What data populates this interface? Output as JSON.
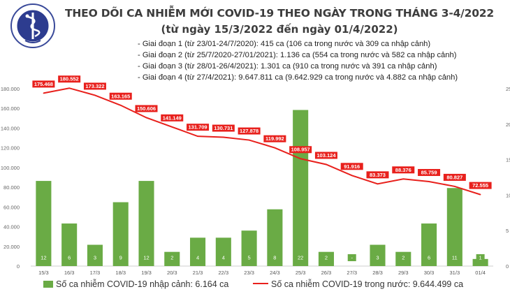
{
  "title_line1": "THEO DÕI CA NHIỄM MỚI COVID-19 THEO NGÀY TRONG THÁNG 3-4/2022",
  "title_line2": "(từ ngày 15/3/2022 đến ngày 01/4/2022)",
  "phases": [
    "- Giai đoạn 1 (từ 23/01-24/7/2020): 415 ca (106 ca trong nước và 309 ca nhập cảnh)",
    "- Giai đoạn 2 (từ 25/7/2020-27/01/2021): 1.136 ca (554 ca trong nước và 582 ca nhập cảnh)",
    "- Giai đoạn 3 (từ 28/01-26/4/2021): 1.301 ca (910 ca trong nước và 391 ca nhập cảnh)",
    "- Giai đoạn 4 (từ 27/4/2021): 9.647.811 ca (9.642.929 ca trong nước và 4.882 ca nhập cảnh)"
  ],
  "logo_text": "BỘ Y TẾ · MINISTRY OF HEALTH",
  "colors": {
    "bar": "#6aab45",
    "line": "#e8201c",
    "label_box": "#e8201c"
  },
  "chart_data": {
    "type": "bar+line",
    "categories": [
      "15/3",
      "16/3",
      "17/3",
      "18/3",
      "19/3",
      "20/3",
      "21/3",
      "22/3",
      "23/3",
      "24/3",
      "25/3",
      "26/3",
      "27/3",
      "28/3",
      "29/3",
      "30/3",
      "31/3",
      "01/4"
    ],
    "left_axis": {
      "ylim": [
        0,
        180000
      ],
      "ticks": [
        "0",
        "20.000",
        "40.000",
        "60.000",
        "80.000",
        "100.000",
        "120.000",
        "140.000",
        "160.000",
        "180.000"
      ]
    },
    "right_axis": {
      "ylim": [
        0,
        25
      ],
      "ticks": [
        "0",
        "5",
        "10",
        "15",
        "20",
        "25"
      ]
    },
    "series": [
      {
        "name": "Số ca nhiễm COVID-19 nhập cảnh: 6.164 ca",
        "axis": "right",
        "kind": "bar",
        "values": [
          12,
          6,
          3,
          9,
          12,
          2,
          4,
          4,
          5,
          8,
          22,
          2,
          0,
          3,
          2,
          6,
          11,
          1
        ],
        "labels": [
          "12",
          "6",
          "3",
          "9",
          "12",
          "2",
          "4",
          "4",
          "5",
          "8",
          "22",
          "2",
          "-",
          "3",
          "2",
          "6",
          "11",
          "1"
        ]
      },
      {
        "name": "Số ca nhiễm COVID-19 trong nước: 9.644.499 ca",
        "axis": "left",
        "kind": "line",
        "values": [
          175468,
          180552,
          173322,
          163165,
          150606,
          141149,
          131709,
          130731,
          127878,
          119992,
          108957,
          103124,
          91916,
          83373,
          88376,
          85759,
          80827,
          72555
        ],
        "labels": [
          "175.468",
          "180.552",
          "173.322",
          "163.165",
          "150.606",
          "141.149",
          "131.709",
          "130.731",
          "127.878",
          "119.992",
          "108.957",
          "103.124",
          "91.916",
          "83.373",
          "88.376",
          "85.759",
          "80.827",
          "72.555"
        ]
      }
    ],
    "legend_position": "bottom"
  }
}
